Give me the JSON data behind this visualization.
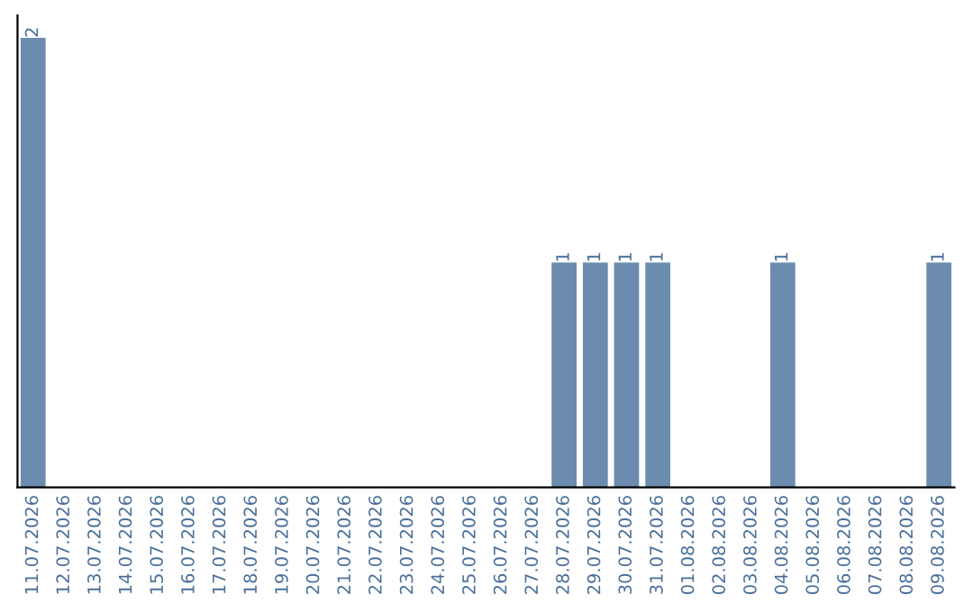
{
  "chart_data": {
    "type": "bar",
    "categories": [
      "11.07.2026",
      "12.07.2026",
      "13.07.2026",
      "14.07.2026",
      "15.07.2026",
      "16.07.2026",
      "17.07.2026",
      "18.07.2026",
      "19.07.2026",
      "20.07.2026",
      "21.07.2026",
      "22.07.2026",
      "23.07.2026",
      "24.07.2026",
      "25.07.2026",
      "26.07.2026",
      "27.07.2026",
      "28.07.2026",
      "29.07.2026",
      "30.07.2026",
      "31.07.2026",
      "01.08.2026",
      "02.08.2026",
      "03.08.2026",
      "04.08.2026",
      "05.08.2026",
      "06.08.2026",
      "07.08.2026",
      "08.08.2026",
      "09.08.2026"
    ],
    "values": [
      2,
      0,
      0,
      0,
      0,
      0,
      0,
      0,
      0,
      0,
      0,
      0,
      0,
      0,
      0,
      0,
      0,
      1,
      1,
      1,
      1,
      0,
      0,
      0,
      1,
      0,
      0,
      0,
      0,
      1
    ],
    "value_labels": [
      "2",
      null,
      null,
      null,
      null,
      null,
      null,
      null,
      null,
      null,
      null,
      null,
      null,
      null,
      null,
      null,
      null,
      "1",
      "1",
      "1",
      "1",
      null,
      null,
      null,
      "1",
      null,
      null,
      null,
      null,
      "1"
    ],
    "color": "#6b8cae",
    "grid": false,
    "legend": false
  }
}
